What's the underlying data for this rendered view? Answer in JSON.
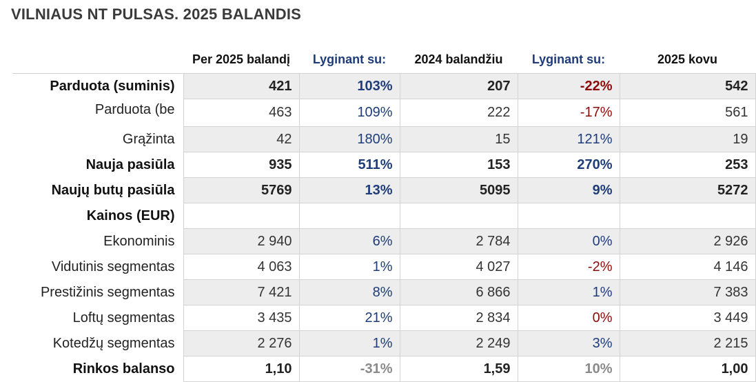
{
  "title": "VILNIAUS NT PULSAS. 2025 BALANDIS",
  "headers": [
    "Per 2025 balandį",
    "Lyginant su:",
    "2024 balandžiu",
    "Lyginant su:",
    "2025 kovu"
  ],
  "rows": [
    {
      "label": "Parduota (suminis)",
      "cells": [
        "421",
        "103%",
        "207",
        "-22%",
        "542"
      ]
    },
    {
      "label": "Parduota (be",
      "cells": [
        "463",
        "109%",
        "222",
        "-17%",
        "561"
      ]
    },
    {
      "label": "Grąžinta",
      "cells": [
        "42",
        "180%",
        "15",
        "121%",
        "19"
      ]
    },
    {
      "label": "Nauja pasiūla",
      "cells": [
        "935",
        "511%",
        "153",
        "270%",
        "253"
      ]
    },
    {
      "label": "Naujų butų pasiūla",
      "cells": [
        "5769",
        "13%",
        "5095",
        "9%",
        "5272"
      ]
    },
    {
      "label": "Kainos (EUR)",
      "cells": [
        "",
        "",
        "",
        "",
        ""
      ]
    },
    {
      "label": "Ekonominis",
      "cells": [
        "2 940",
        "6%",
        "2 784",
        "0%",
        "2 926"
      ]
    },
    {
      "label": "Vidutinis segmentas",
      "cells": [
        "4 063",
        "1%",
        "4 027",
        "-2%",
        "4 146"
      ]
    },
    {
      "label": "Prestižinis segmentas",
      "cells": [
        "7 421",
        "8%",
        "6 866",
        "1%",
        "7 383"
      ]
    },
    {
      "label": "Loftų segmentas",
      "cells": [
        "3 435",
        "21%",
        "2 834",
        "0%",
        "3 449"
      ]
    },
    {
      "label": "Kotedžų segmentas",
      "cells": [
        "2 276",
        "1%",
        "2 249",
        "3%",
        "2 215"
      ]
    },
    {
      "label": "Rinkos balanso",
      "cells": [
        "1,10",
        "-31%",
        "1,59",
        "10%",
        "1,00"
      ]
    }
  ],
  "colors": {
    "positive": "#1f3c7a",
    "negative": "#8b0a0a",
    "neutral": "#8a8a8a",
    "shade": "#ededed"
  }
}
